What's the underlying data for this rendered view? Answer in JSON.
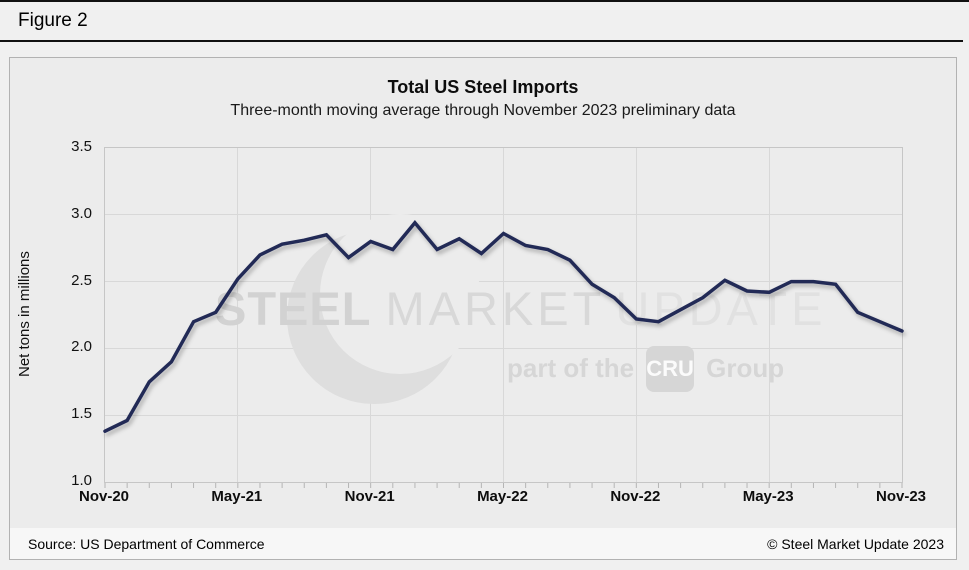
{
  "figure_label": "Figure 2",
  "footer": {
    "source": "Source: US Department of Commerce",
    "copyright": "© Steel Market Update 2023"
  },
  "watermark": {
    "word1": "STEEL",
    "word2": "MARKET",
    "word3": "UPDATE",
    "tagline_prefix": "part of the",
    "badge": "CRU",
    "tagline_suffix": "Group"
  },
  "chart_data": {
    "type": "line",
    "title": "Total US Steel Imports",
    "subtitle": "Three-month moving average through November 2023 preliminary data",
    "ylabel": "Net tons in millions",
    "ylim": [
      1.0,
      3.5
    ],
    "ytick_step": 0.5,
    "yticks": [
      "3.5",
      "3.0",
      "2.5",
      "2.0",
      "1.5",
      "1.0"
    ],
    "xticks": [
      "Nov-20",
      "May-21",
      "Nov-21",
      "May-22",
      "Nov-22",
      "May-23",
      "Nov-23"
    ],
    "grid": true,
    "legend": "none",
    "line_color": "#202a56",
    "x": [
      "Nov-20",
      "Dec-20",
      "Jan-21",
      "Feb-21",
      "Mar-21",
      "Apr-21",
      "May-21",
      "Jun-21",
      "Jul-21",
      "Aug-21",
      "Sep-21",
      "Oct-21",
      "Nov-21",
      "Dec-21",
      "Jan-22",
      "Feb-22",
      "Mar-22",
      "Apr-22",
      "May-22",
      "Jun-22",
      "Jul-22",
      "Aug-22",
      "Sep-22",
      "Oct-22",
      "Nov-22",
      "Dec-22",
      "Jan-23",
      "Feb-23",
      "Mar-23",
      "Apr-23",
      "May-23",
      "Jun-23",
      "Jul-23",
      "Aug-23",
      "Sep-23",
      "Oct-23",
      "Nov-23"
    ],
    "values": [
      1.38,
      1.46,
      1.75,
      1.9,
      2.2,
      2.27,
      2.52,
      2.7,
      2.78,
      2.81,
      2.85,
      2.68,
      2.8,
      2.74,
      2.94,
      2.74,
      2.82,
      2.71,
      2.86,
      2.77,
      2.74,
      2.66,
      2.48,
      2.38,
      2.22,
      2.2,
      2.29,
      2.38,
      2.51,
      2.43,
      2.42,
      2.5,
      2.5,
      2.48,
      2.27,
      2.2,
      2.13
    ]
  }
}
